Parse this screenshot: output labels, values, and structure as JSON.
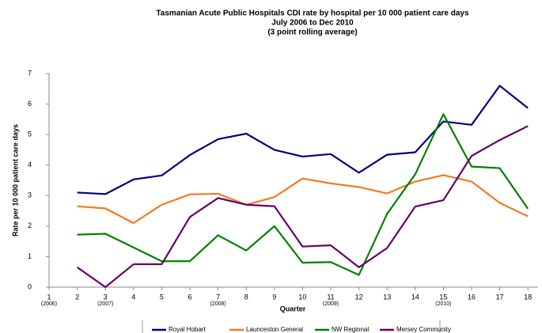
{
  "chart_data": {
    "type": "line",
    "title": "Tasmanian Acute Public Hospitals CDI rate by hospital per 10 000 patient care days",
    "subtitle": "July 2006 to Dec 2010",
    "subtitle2": "(3 point rolling average)",
    "xlabel": "Quarter",
    "ylabel": "Rate per 10 000 patient care days",
    "categories": [
      "1",
      "2",
      "3",
      "4",
      "5",
      "6",
      "7",
      "8",
      "9",
      "10",
      "11",
      "12",
      "13",
      "14",
      "15",
      "16",
      "17",
      "18"
    ],
    "category_sublabels": [
      "(2006)",
      null,
      "(2007)",
      null,
      null,
      null,
      "(2008)",
      null,
      null,
      null,
      "(2009)",
      null,
      null,
      null,
      "(2010)",
      null,
      null,
      null
    ],
    "ylim": [
      0,
      7
    ],
    "yticks": [
      0,
      1,
      2,
      3,
      4,
      5,
      6,
      7
    ],
    "series": [
      {
        "name": "Royal Hobart",
        "color": "#000080",
        "values": [
          null,
          3.1,
          3.05,
          3.53,
          3.66,
          4.33,
          4.85,
          5.03,
          4.5,
          4.28,
          4.36,
          3.75,
          4.34,
          4.42,
          5.43,
          5.32,
          6.6,
          5.87
        ]
      },
      {
        "name": "Launceston General",
        "color": "#f47a20",
        "values": [
          null,
          2.65,
          2.58,
          2.1,
          2.7,
          3.04,
          3.06,
          2.7,
          2.95,
          3.56,
          3.4,
          3.28,
          3.07,
          3.46,
          3.67,
          3.46,
          2.76,
          2.32
        ]
      },
      {
        "name": "NW Regional",
        "color": "#008000",
        "values": [
          null,
          1.72,
          1.75,
          1.3,
          0.85,
          0.85,
          1.7,
          1.2,
          2.0,
          0.8,
          0.82,
          0.4,
          2.4,
          3.7,
          5.67,
          3.95,
          3.9,
          2.57
        ]
      },
      {
        "name": "Mersey Community",
        "color": "#660066",
        "values": [
          null,
          0.65,
          0,
          0.75,
          0.75,
          2.3,
          2.92,
          2.7,
          2.65,
          1.33,
          1.37,
          0.65,
          1.28,
          2.64,
          2.85,
          4.3,
          4.82,
          5.28
        ]
      }
    ]
  }
}
